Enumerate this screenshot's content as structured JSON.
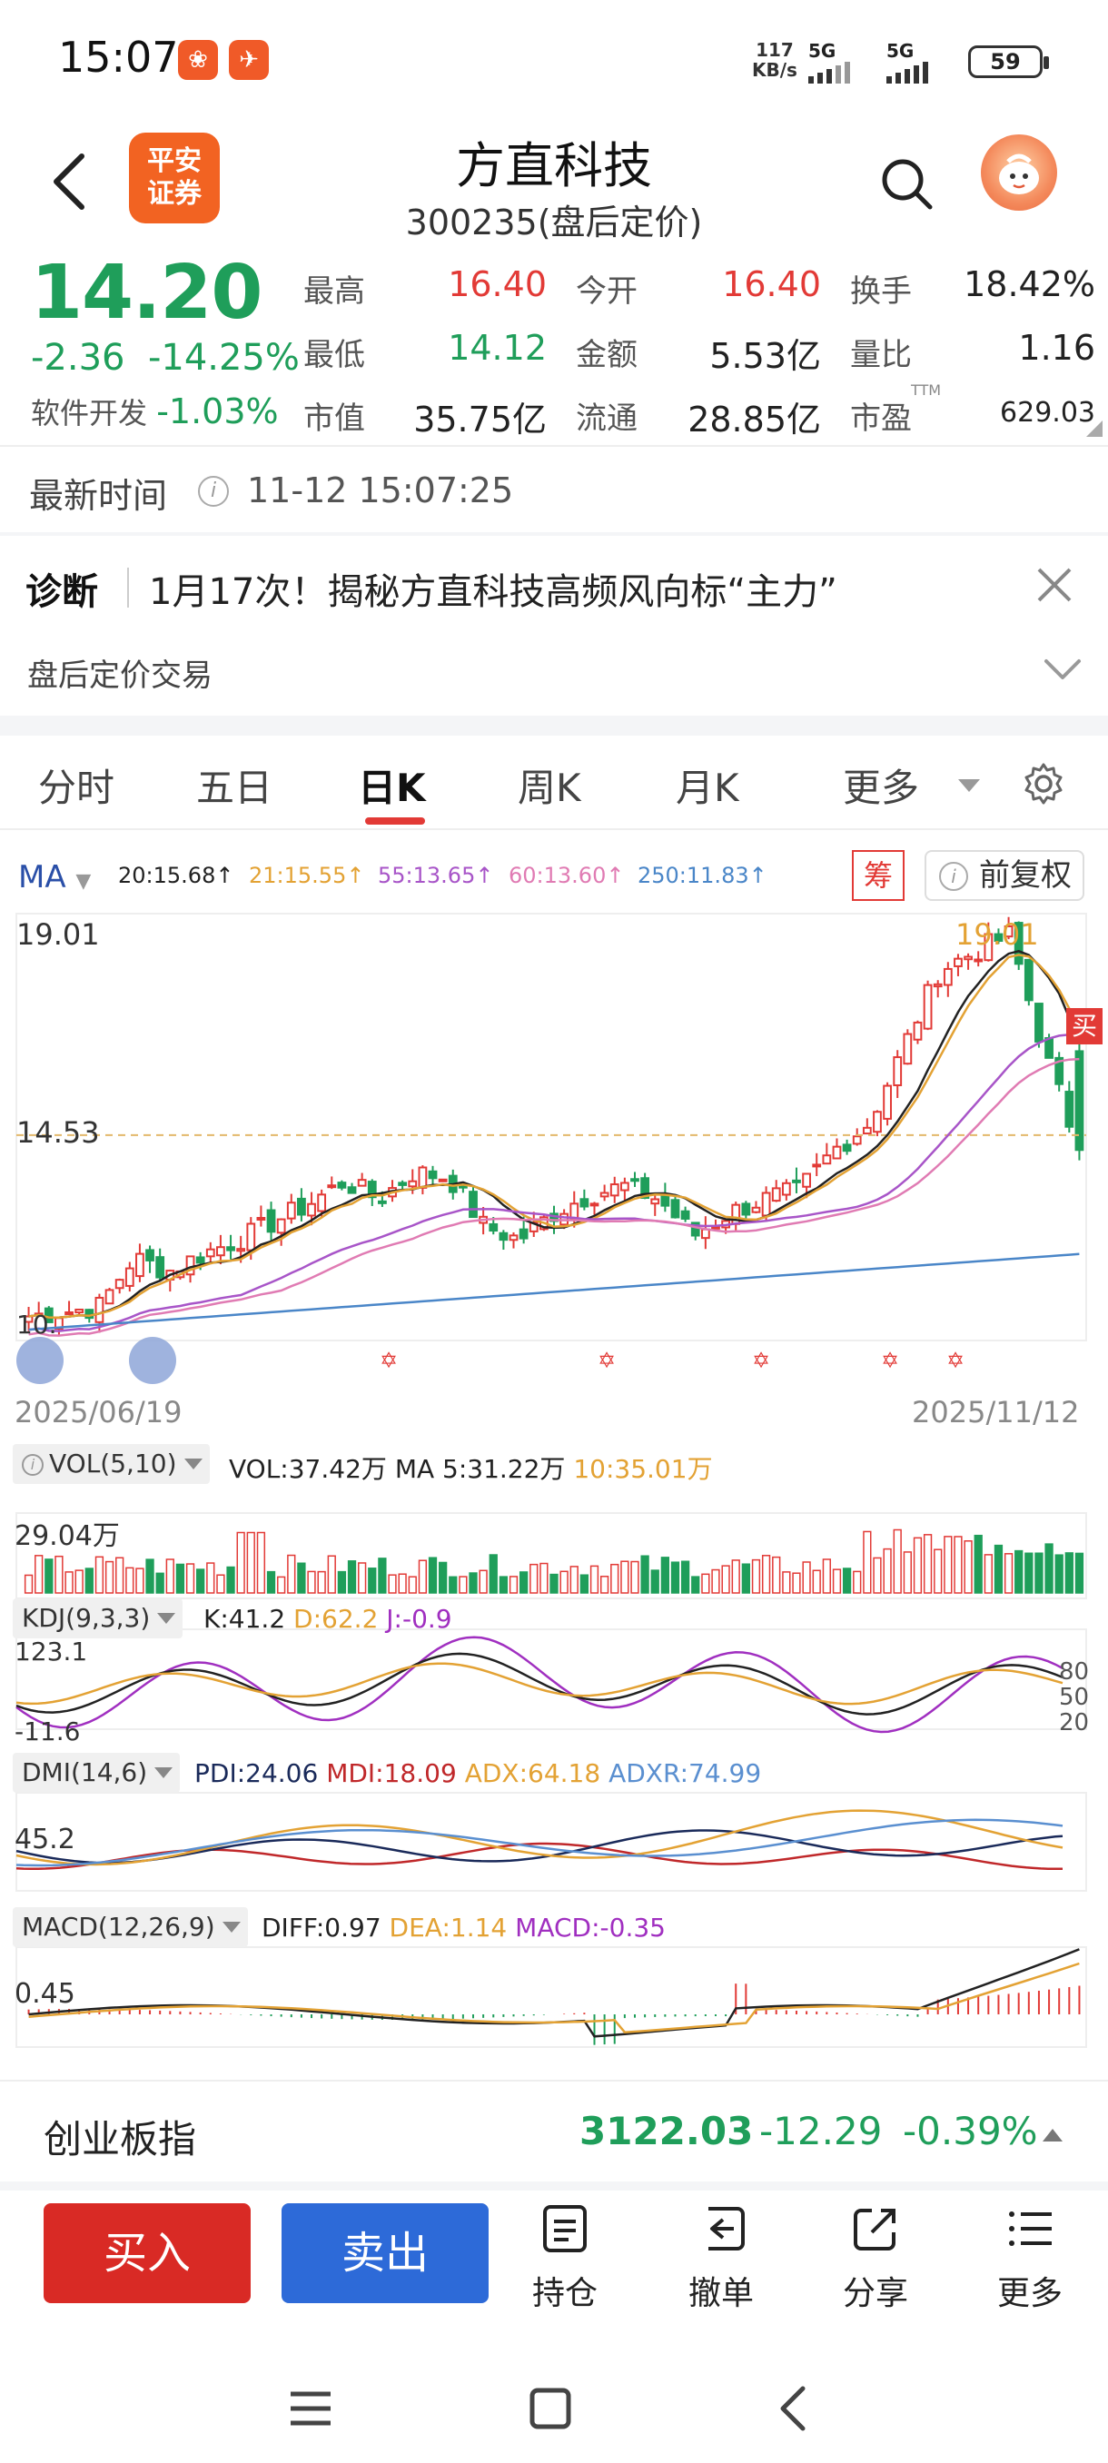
{
  "status_bar": {
    "time": "15:07",
    "speed_value": "117",
    "speed_unit": "KB/s",
    "network_1": "5G",
    "network_2": "5G",
    "battery": "59"
  },
  "header": {
    "logo_line1": "平安",
    "logo_line2": "证券",
    "stock_name": "方直科技",
    "stock_code": "300235(盘后定价)"
  },
  "quote": {
    "price": "14.20",
    "change": "-2.36",
    "change_pct": "-14.25%",
    "sector": "软件开发",
    "sector_pct": "-1.03%",
    "fields": {
      "high_label": "最高",
      "high": "16.40",
      "open_label": "今开",
      "open": "16.40",
      "turnover_label": "换手",
      "turnover": "18.42%",
      "low_label": "最低",
      "low": "14.12",
      "amount_label": "金额",
      "amount": "5.53亿",
      "vol_ratio_label": "量比",
      "vol_ratio": "1.16",
      "mcap_label": "市值",
      "mcap": "35.75亿",
      "float_label": "流通",
      "float": "28.85亿",
      "pe_label": "市盈",
      "pe_sup": "TTM",
      "pe": "629.03"
    }
  },
  "latest_time": {
    "label": "最新时间",
    "value": "11-12 15:07:25"
  },
  "diagnosis": {
    "label": "诊断",
    "text": "1月17次！揭秘方直科技高频风向标“主力”",
    "after_hours": "盘后定价交易"
  },
  "tabs": [
    {
      "label": "分时",
      "active": false
    },
    {
      "label": "五日",
      "active": false
    },
    {
      "label": "日K",
      "active": true
    },
    {
      "label": "周K",
      "active": false
    },
    {
      "label": "月K",
      "active": false
    },
    {
      "label": "更多",
      "active": false
    }
  ],
  "chart": {
    "ma_selector": "MA",
    "ma_legend": [
      {
        "text": "20:15.68↑",
        "color": "#222222"
      },
      {
        "text": "21:15.55↑",
        "color": "#e3a234"
      },
      {
        "text": "55:13.65↑",
        "color": "#a855c8"
      },
      {
        "text": "60:13.60↑",
        "color": "#e07bb3"
      },
      {
        "text": "250:11.83↑",
        "color": "#4a86c8"
      }
    ],
    "chip_button": "筹",
    "adjust_button": "前复权",
    "price_max_label": "19.01",
    "price_ref_label": "14.53",
    "price_high_marker": "19.01",
    "price_low_label": "10.",
    "buy_sell_tag": "买",
    "date_start": "2025/06/19",
    "date_end": "2025/11/12"
  },
  "indicators": {
    "vol": {
      "name": "VOL(5,10)",
      "v1": "VOL:37.42万",
      "v2": "MA 5:31.22万",
      "v3": "10:35.01万",
      "axis": "29.04万"
    },
    "kdj": {
      "name": "KDJ(9,3,3)",
      "k": "K:41.2",
      "d": "D:62.2",
      "j": "J:-0.9",
      "axis_top": "123.1",
      "axis_bottom": "-11.6",
      "right_80": "80",
      "right_50": "50",
      "right_20": "20"
    },
    "dmi": {
      "name": "DMI(14,6)",
      "pdi": "PDI:24.06",
      "mdi": "MDI:18.09",
      "adx": "ADX:64.18",
      "adxr": "ADXR:74.99",
      "axis": "45.2"
    },
    "macd": {
      "name": "MACD(12,26,9)",
      "diff": "DIFF:0.97",
      "dea": "DEA:1.14",
      "macd": "MACD:-0.35",
      "axis": "0.45"
    }
  },
  "index_bar": {
    "name": "创业板指",
    "price": "3122.03",
    "change": "-12.29",
    "pct": "-0.39%"
  },
  "actions": {
    "buy": "买入",
    "sell": "卖出",
    "items": [
      {
        "label": "持仓",
        "icon": "doc-icon"
      },
      {
        "label": "撤单",
        "icon": "undo-icon"
      },
      {
        "label": "分享",
        "icon": "share-icon"
      },
      {
        "label": "更多",
        "icon": "list-icon"
      }
    ]
  },
  "chart_data": {
    "type": "candlestick",
    "x_range": [
      "2025/06/19",
      "2025/11/12"
    ],
    "ylim_visible": [
      10.0,
      19.01
    ],
    "reference_price": 14.53,
    "latest": {
      "open": 16.4,
      "high": 16.4,
      "low": 14.12,
      "close": 14.2
    },
    "moving_averages": [
      {
        "name": "20",
        "value": 15.68
      },
      {
        "name": "21",
        "value": 15.55
      },
      {
        "name": "55",
        "value": 13.65
      },
      {
        "name": "60",
        "value": 13.6
      },
      {
        "name": "250",
        "value": 11.83
      }
    ],
    "close_profile": [
      10.5,
      10.6,
      10.7,
      11.8,
      11.5,
      11.9,
      12.2,
      12.6,
      13.0,
      13.5,
      13.1,
      13.7,
      13.6,
      12.5,
      12.2,
      12.8,
      13.2,
      13.4,
      13.1,
      12.3,
      12.8,
      13.1,
      13.3,
      14.2,
      14.8,
      16.5,
      18.2,
      18.6,
      19.0,
      16.4,
      14.2
    ]
  }
}
